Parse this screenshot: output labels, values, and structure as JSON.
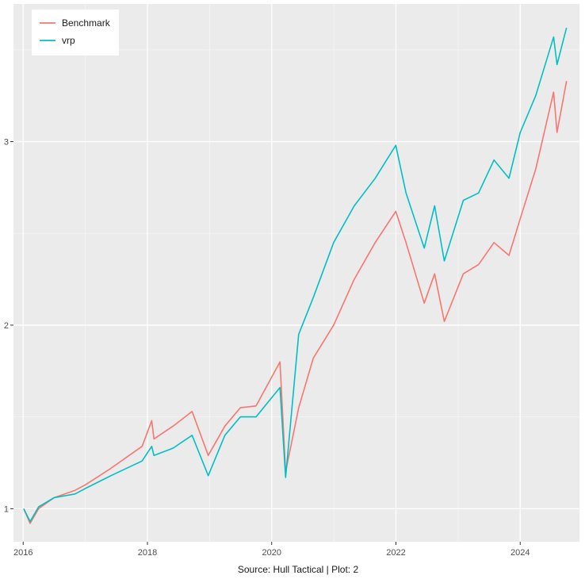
{
  "chart_data": {
    "type": "line",
    "title": "",
    "xlabel": "",
    "ylabel": "",
    "caption": "Source: Hull Tactical | Plot: 2",
    "x_ticks": [
      "2016",
      "2018",
      "2020",
      "2022",
      "2024"
    ],
    "y_ticks": [
      "1",
      "2",
      "3"
    ],
    "xlim": [
      "2015-11-05",
      "2024-12-15"
    ],
    "ylim": [
      0.82,
      3.75
    ],
    "grid": true,
    "legend_position": "top-left",
    "x": [
      "2016-01-04",
      "2016-02-11",
      "2016-04-01",
      "2016-07-01",
      "2016-11-01",
      "2017-01-01",
      "2017-06-01",
      "2017-12-01",
      "2018-01-26",
      "2018-02-08",
      "2018-06-01",
      "2018-09-20",
      "2018-12-24",
      "2019-04-01",
      "2019-07-01",
      "2019-10-01",
      "2020-02-19",
      "2020-03-23",
      "2020-06-08",
      "2020-09-02",
      "2020-12-31",
      "2021-05-01",
      "2021-09-01",
      "2021-12-31",
      "2022-03-01",
      "2022-06-16",
      "2022-08-16",
      "2022-10-12",
      "2023-02-01",
      "2023-05-01",
      "2023-07-31",
      "2023-10-27",
      "2024-01-01",
      "2024-04-01",
      "2024-07-16",
      "2024-08-05",
      "2024-09-30"
    ],
    "series": [
      {
        "name": "Benchmark",
        "color": "#f8766d",
        "values": [
          1.0,
          0.92,
          1.0,
          1.06,
          1.1,
          1.13,
          1.22,
          1.34,
          1.48,
          1.38,
          1.45,
          1.53,
          1.29,
          1.45,
          1.55,
          1.56,
          1.8,
          1.2,
          1.55,
          1.82,
          2.0,
          2.25,
          2.45,
          2.62,
          2.45,
          2.12,
          2.28,
          2.02,
          2.28,
          2.33,
          2.45,
          2.38,
          2.58,
          2.85,
          3.27,
          3.05,
          3.33
        ]
      },
      {
        "name": "vrp",
        "color": "#00bfc4",
        "values": [
          1.0,
          0.93,
          1.01,
          1.06,
          1.08,
          1.11,
          1.18,
          1.26,
          1.34,
          1.29,
          1.33,
          1.4,
          1.18,
          1.4,
          1.5,
          1.5,
          1.66,
          1.17,
          1.95,
          2.15,
          2.45,
          2.65,
          2.8,
          2.98,
          2.72,
          2.42,
          2.65,
          2.35,
          2.68,
          2.72,
          2.9,
          2.8,
          3.05,
          3.25,
          3.57,
          3.42,
          3.62
        ]
      }
    ]
  }
}
